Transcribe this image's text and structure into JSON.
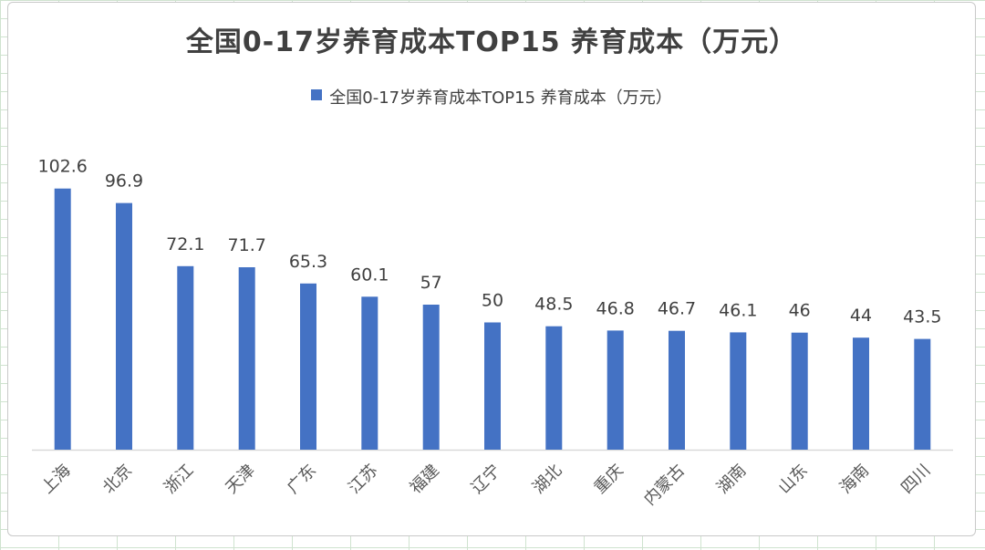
{
  "chart_data": {
    "type": "bar",
    "title": "全国0-17岁养育成本TOP15 养育成本（万元）",
    "series": [
      {
        "name": "全国0-17岁养育成本TOP15 养育成本（万元）",
        "values": [
          102.6,
          96.9,
          72.1,
          71.7,
          65.3,
          60.1,
          57,
          50,
          48.5,
          46.8,
          46.7,
          46.1,
          46,
          44,
          43.5
        ],
        "value_labels": [
          "102.6",
          "96.9",
          "72.1",
          "71.7",
          "65.3",
          "60.1",
          "57",
          "50",
          "48.5",
          "46.8",
          "46.7",
          "46.1",
          "46",
          "44",
          "43.5"
        ]
      }
    ],
    "categories": [
      "上海",
      "北京",
      "浙江",
      "天津",
      "广东",
      "江苏",
      "福建",
      "辽宁",
      "湖北",
      "重庆",
      "内蒙古",
      "湖南",
      "山东",
      "海南",
      "四川"
    ],
    "xlabel": "",
    "ylabel": "",
    "ylim": [
      0,
      120
    ],
    "grid": false,
    "legend": "top",
    "colors": {
      "bar": "#4472C4",
      "axis": "#d9d9d9"
    }
  }
}
